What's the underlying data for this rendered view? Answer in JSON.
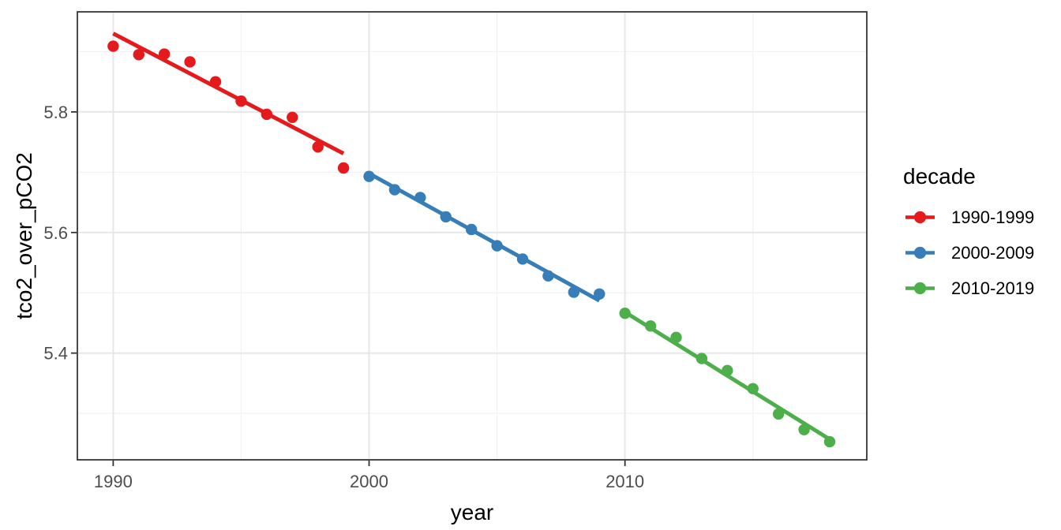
{
  "chart_data": {
    "type": "scatter",
    "title": "",
    "xlabel": "year",
    "ylabel": "tco2_over_pCO2",
    "xlim": [
      1988.6,
      2019.45
    ],
    "ylim": [
      5.223,
      5.966
    ],
    "grid": "major-and-minor",
    "x_major_ticks": {
      "values": [
        1990,
        2000,
        2010
      ],
      "labels": [
        "1990",
        "2000",
        "2010"
      ]
    },
    "x_minor_gridlines": [
      1995,
      2005,
      2015
    ],
    "y_major_ticks": {
      "values": [
        5.4,
        5.6,
        5.8
      ],
      "labels": [
        "5.4",
        "5.6",
        "5.8"
      ]
    },
    "y_minor_gridlines": [
      5.3,
      5.5,
      5.7,
      5.9
    ],
    "legend": {
      "title": "decade",
      "position": "right"
    },
    "series": [
      {
        "name": "1990-1999",
        "color": "#E41A1C",
        "x": [
          1990,
          1991,
          1992,
          1993,
          1994,
          1995,
          1996,
          1997,
          1998,
          1999
        ],
        "y": [
          5.909,
          5.895,
          5.896,
          5.883,
          5.85,
          5.818,
          5.796,
          5.791,
          5.742,
          5.707
        ],
        "trend": {
          "x": [
            1990,
            1999
          ],
          "y": [
            5.93,
            5.731
          ]
        }
      },
      {
        "name": "2000-2009",
        "color": "#377EB8",
        "x": [
          2000,
          2001,
          2002,
          2003,
          2004,
          2005,
          2006,
          2007,
          2008,
          2009
        ],
        "y": [
          5.693,
          5.671,
          5.658,
          5.626,
          5.605,
          5.578,
          5.556,
          5.528,
          5.501,
          5.498
        ],
        "trend": {
          "x": [
            2000,
            2009
          ],
          "y": [
            5.698,
            5.487
          ]
        }
      },
      {
        "name": "2010-2019",
        "color": "#4DAF4A",
        "x": [
          2010,
          2011,
          2012,
          2013,
          2014,
          2015,
          2016,
          2017,
          2018
        ],
        "y": [
          5.466,
          5.445,
          5.426,
          5.391,
          5.371,
          5.341,
          5.299,
          5.273,
          5.253
        ],
        "trend": {
          "x": [
            2010,
            2018
          ],
          "y": [
            5.468,
            5.257
          ]
        }
      }
    ],
    "theme": {
      "panel_background": "#FFFFFF",
      "panel_border": "#343434",
      "grid_major_color": "#E7E7E7",
      "grid_minor_color": "#F1F1F1",
      "tick_mark_color": "#333333",
      "tick_label_color": "#4D4D4D",
      "axis_title_color": "#000000",
      "legend_text_color": "#000000"
    }
  }
}
